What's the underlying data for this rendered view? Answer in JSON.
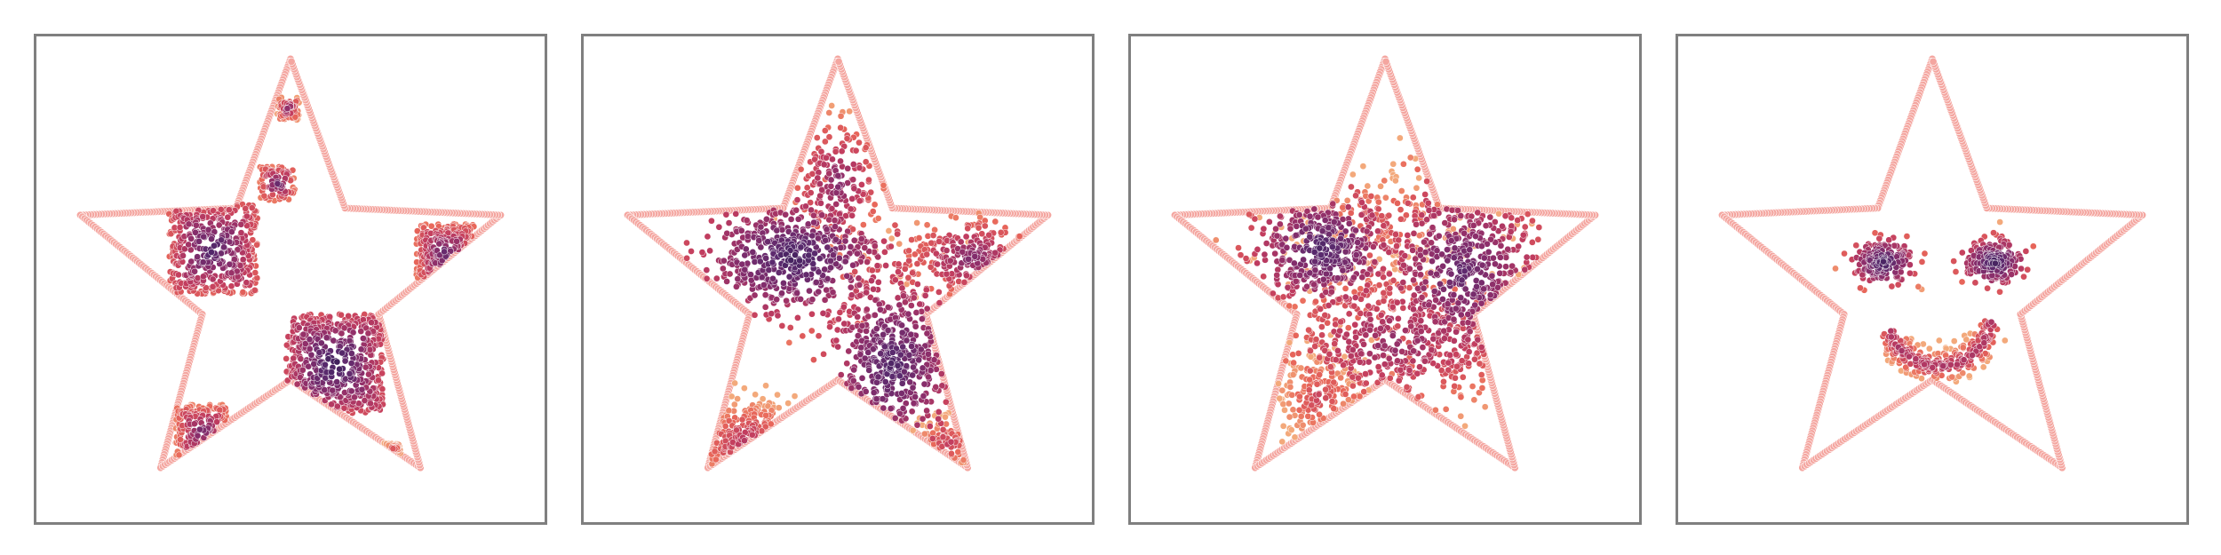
{
  "chart_data": [
    {
      "type": "scatter",
      "panel": 1,
      "title": "",
      "xlabel": "",
      "ylabel": "",
      "xlim": [
        -1.15,
        1.15
      ],
      "ylim": [
        -1.05,
        1.1
      ],
      "grid": false,
      "legend": "none",
      "boundary": {
        "shape": "five-point-star",
        "outer_radius": 1.0,
        "inner_radius": 0.42,
        "color": "#f4a6a0"
      },
      "colormap": [
        "#2d1b4e",
        "#5a2a6e",
        "#8c2e6b",
        "#c23d5f",
        "#e8665a",
        "#f3a97b"
      ],
      "series": [
        {
          "name": "",
          "clusters": [
            {
              "shape": "square",
              "cx": -0.35,
              "cy": 0.16,
              "half": 0.2,
              "n": 420,
              "density": 0.85
            },
            {
              "shape": "square",
              "cx": 0.2,
              "cy": -0.35,
              "half": 0.22,
              "n": 500,
              "density": 0.95
            },
            {
              "shape": "square",
              "cx": 0.7,
              "cy": 0.14,
              "half": 0.13,
              "n": 200,
              "density": 0.75
            },
            {
              "shape": "square",
              "cx": -0.06,
              "cy": 0.45,
              "half": 0.08,
              "n": 90,
              "density": 0.7
            },
            {
              "shape": "square",
              "cx": -0.01,
              "cy": 0.78,
              "half": 0.05,
              "n": 60,
              "density": 0.6
            },
            {
              "shape": "square",
              "cx": -0.4,
              "cy": -0.65,
              "half": 0.12,
              "n": 150,
              "density": 0.7
            },
            {
              "shape": "square",
              "cx": 0.45,
              "cy": -0.75,
              "half": 0.05,
              "n": 50,
              "density": 0.5
            }
          ]
        }
      ]
    },
    {
      "type": "scatter",
      "panel": 2,
      "title": "",
      "xlabel": "",
      "ylabel": "",
      "xlim": [
        -1.15,
        1.15
      ],
      "ylim": [
        -1.05,
        1.1
      ],
      "grid": false,
      "legend": "none",
      "boundary": {
        "shape": "five-point-star",
        "outer_radius": 1.0,
        "inner_radius": 0.42,
        "color": "#f4a6a0"
      },
      "colormap": [
        "#2d1b4e",
        "#5a2a6e",
        "#8c2e6b",
        "#c23d5f",
        "#e8665a",
        "#f3a97b"
      ],
      "series": [
        {
          "name": "",
          "clusters": [
            {
              "shape": "blob",
              "cx": -0.2,
              "cy": 0.12,
              "sx": 0.22,
              "sy": 0.13,
              "n": 520,
              "density": 0.9
            },
            {
              "shape": "blob",
              "cx": 0.25,
              "cy": -0.35,
              "sx": 0.15,
              "sy": 0.2,
              "n": 450,
              "density": 0.85
            },
            {
              "shape": "blob",
              "cx": 0.6,
              "cy": 0.12,
              "sx": 0.14,
              "sy": 0.09,
              "n": 200,
              "density": 0.6
            },
            {
              "shape": "blob",
              "cx": 0.0,
              "cy": 0.45,
              "sx": 0.1,
              "sy": 0.14,
              "n": 180,
              "density": 0.6
            },
            {
              "shape": "blob",
              "cx": -0.4,
              "cy": -0.7,
              "sx": 0.14,
              "sy": 0.1,
              "n": 160,
              "density": 0.4
            },
            {
              "shape": "blob",
              "cx": 0.5,
              "cy": -0.7,
              "sx": 0.08,
              "sy": 0.07,
              "n": 60,
              "density": 0.3
            }
          ]
        }
      ]
    },
    {
      "type": "scatter",
      "panel": 3,
      "title": "",
      "xlabel": "",
      "ylabel": "",
      "xlim": [
        -1.15,
        1.15
      ],
      "ylim": [
        -1.05,
        1.1
      ],
      "grid": false,
      "legend": "none",
      "boundary": {
        "shape": "five-point-star",
        "outer_radius": 1.0,
        "inner_radius": 0.42,
        "color": "#f4a6a0"
      },
      "colormap": [
        "#2d1b4e",
        "#5a2a6e",
        "#8c2e6b",
        "#c23d5f",
        "#e8665a",
        "#f3a97b"
      ],
      "series": [
        {
          "name": "",
          "clusters": [
            {
              "shape": "blob",
              "cx": -0.28,
              "cy": 0.16,
              "sx": 0.16,
              "sy": 0.13,
              "n": 420,
              "density": 0.85
            },
            {
              "shape": "blob",
              "cx": 0.35,
              "cy": 0.05,
              "sx": 0.2,
              "sy": 0.22,
              "n": 500,
              "density": 0.75
            },
            {
              "shape": "blob",
              "cx": 0.05,
              "cy": -0.25,
              "sx": 0.3,
              "sy": 0.16,
              "n": 420,
              "density": 0.55
            },
            {
              "shape": "blob",
              "cx": -0.3,
              "cy": -0.5,
              "sx": 0.12,
              "sy": 0.12,
              "n": 170,
              "density": 0.25
            },
            {
              "shape": "blob",
              "cx": 0.0,
              "cy": 0.3,
              "sx": 0.3,
              "sy": 0.12,
              "n": 150,
              "density": 0.2
            }
          ]
        }
      ]
    },
    {
      "type": "scatter",
      "panel": 4,
      "title": "",
      "xlabel": "",
      "ylabel": "",
      "xlim": [
        -1.15,
        1.15
      ],
      "ylim": [
        -1.05,
        1.1
      ],
      "grid": false,
      "legend": "none",
      "boundary": {
        "shape": "five-point-star",
        "outer_radius": 1.0,
        "inner_radius": 0.42,
        "color": "#f4a6a0"
      },
      "colormap": [
        "#2d1b4e",
        "#5a2a6e",
        "#8c2e6b",
        "#c23d5f",
        "#e8665a",
        "#f3a97b"
      ],
      "series": [
        {
          "name": "",
          "clusters": [
            {
              "shape": "blob",
              "cx": -0.22,
              "cy": 0.1,
              "sx": 0.07,
              "sy": 0.05,
              "n": 180,
              "density": 0.9
            },
            {
              "shape": "blob",
              "cx": 0.28,
              "cy": 0.1,
              "sx": 0.07,
              "sy": 0.05,
              "n": 180,
              "density": 0.9
            },
            {
              "shape": "arc",
              "cx": 0.03,
              "cy": -0.12,
              "r": 0.24,
              "from_deg": 200,
              "to_deg": 350,
              "spread": 0.035,
              "n": 260,
              "density": 0.4
            }
          ]
        }
      ]
    }
  ]
}
